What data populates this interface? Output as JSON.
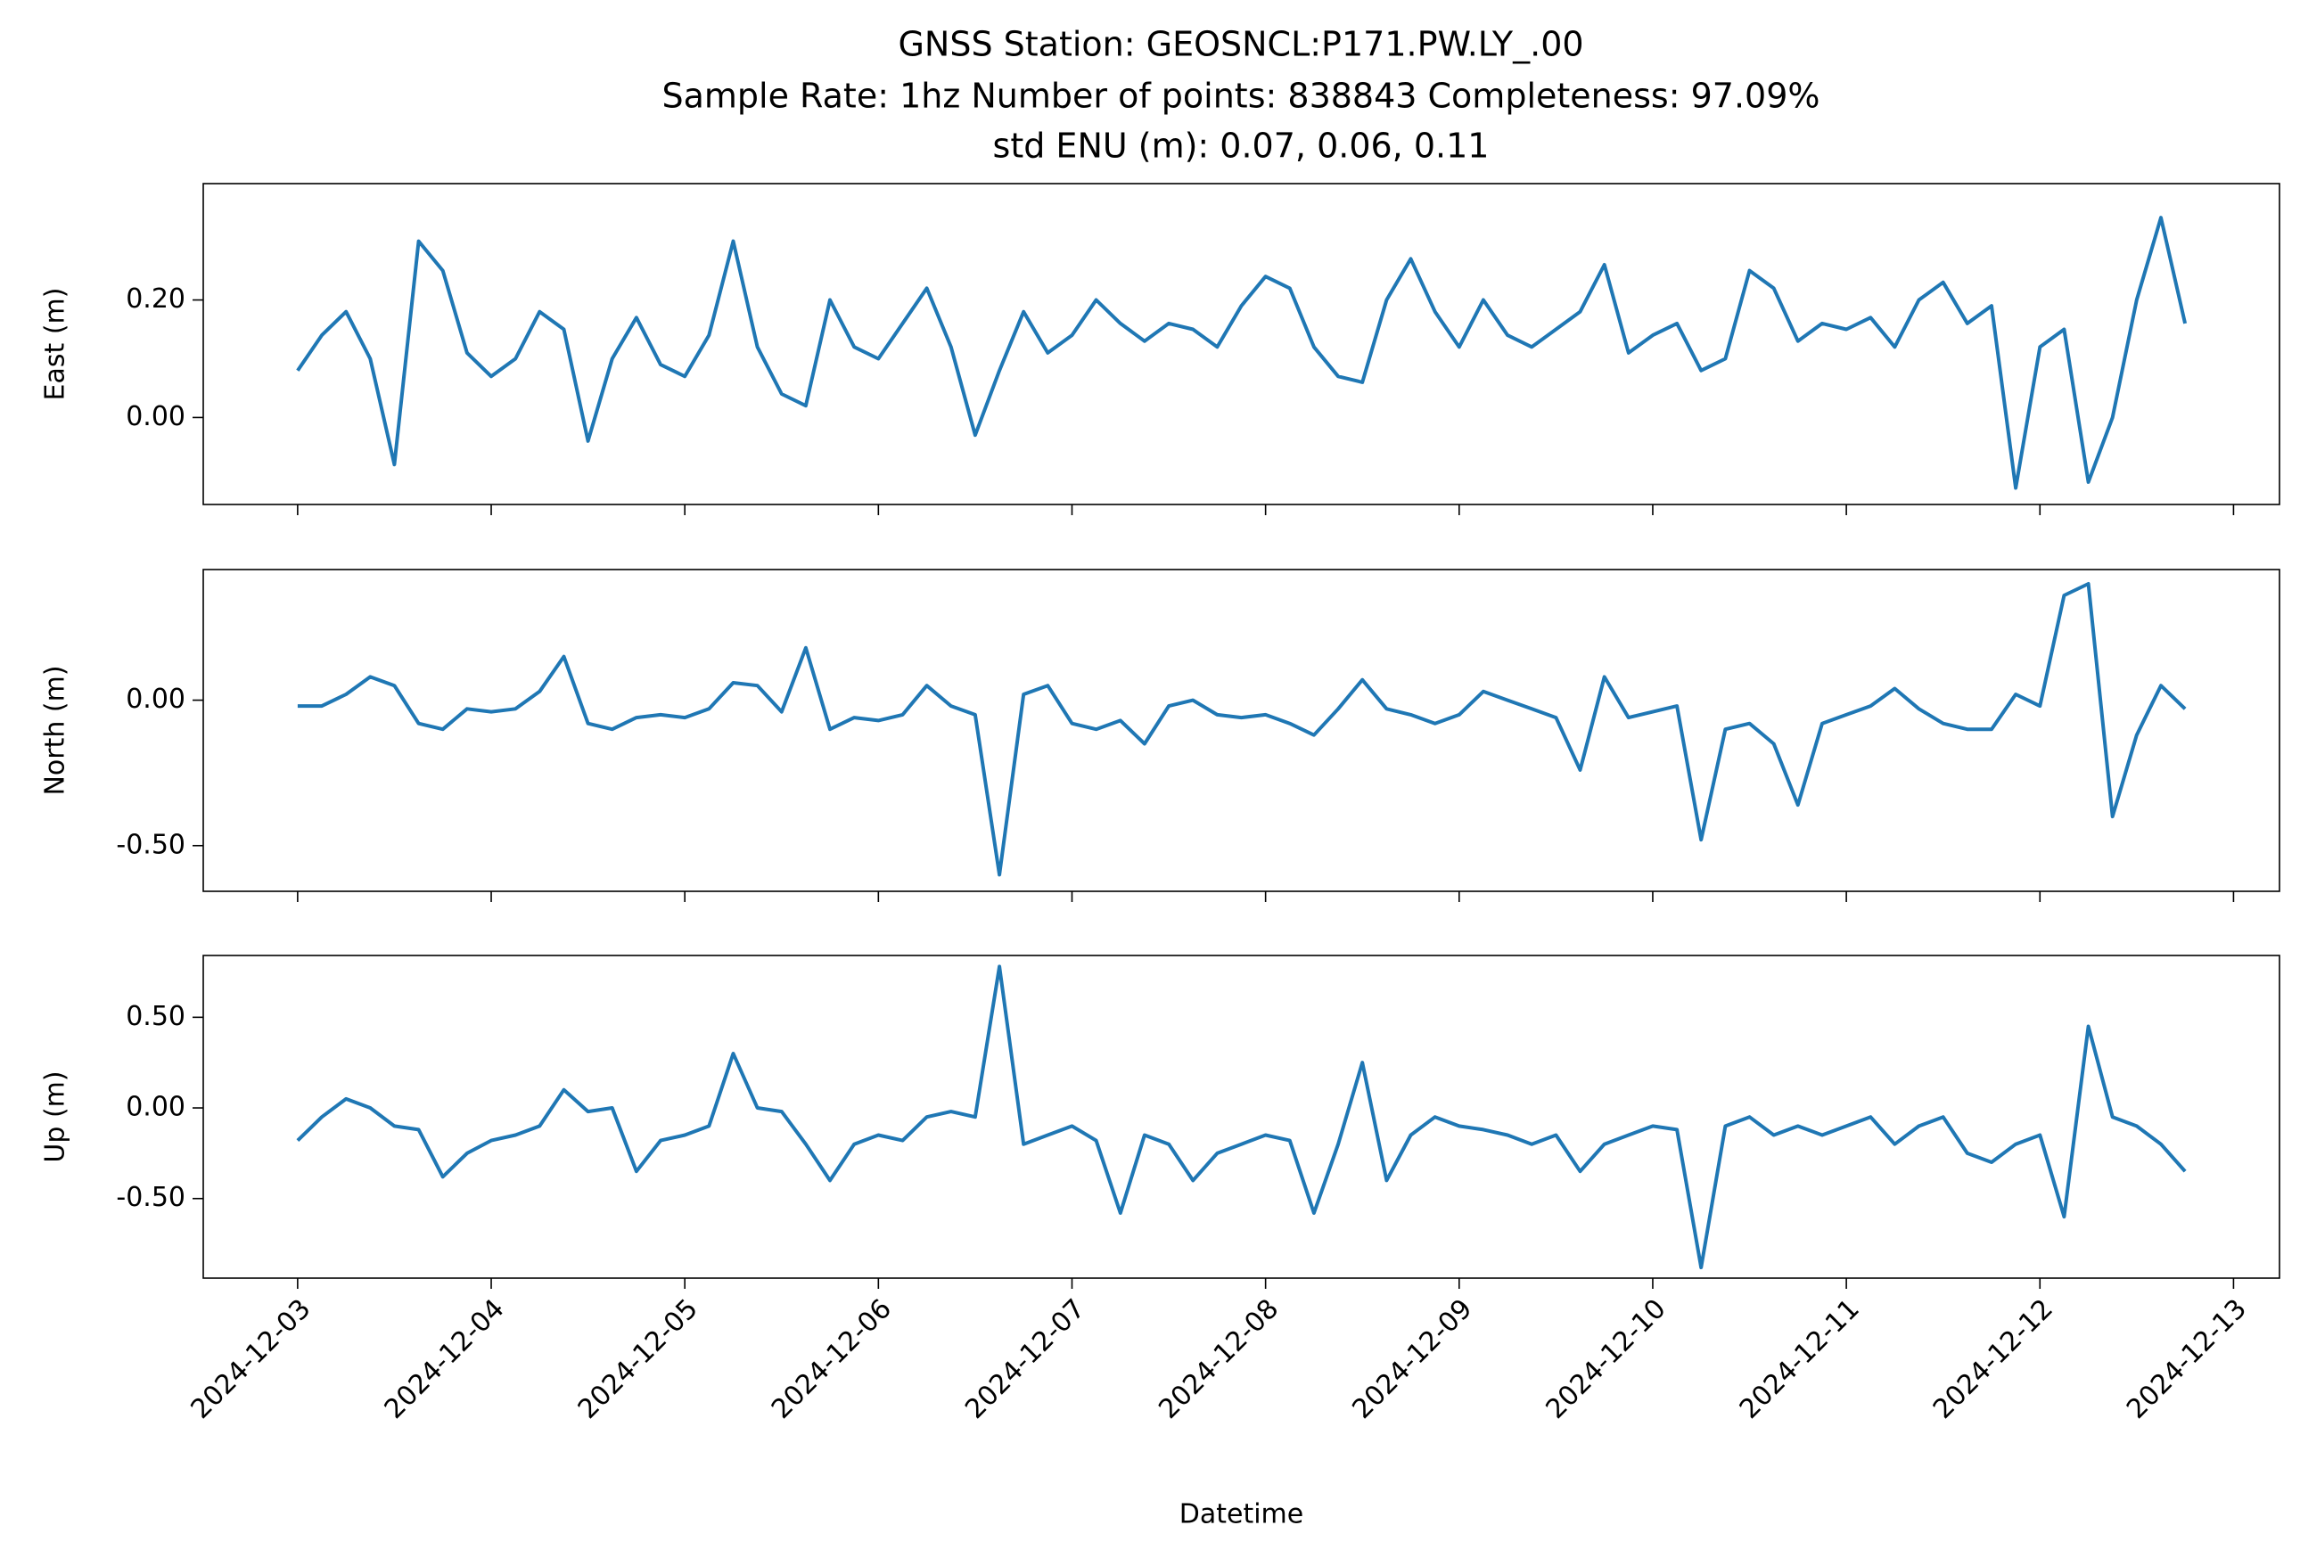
{
  "chart_data": [
    {
      "type": "line",
      "title": [
        "GNSS Station: GEOSNCL:P171.PW.LY_.00",
        "Sample Rate: 1hz   Number of points: 838843    Completeness:  97.09%",
        "std ENU (m):  0.07, 0.06, 0.11"
      ],
      "ylabel": "East (m)",
      "xlim": [
        "2024-12-02T12:18",
        "2024-12-13T05:42"
      ],
      "xticks": [
        "2024-12-03",
        "2024-12-04",
        "2024-12-05",
        "2024-12-06",
        "2024-12-07",
        "2024-12-08",
        "2024-12-09",
        "2024-12-10",
        "2024-12-11",
        "2024-12-12",
        "2024-12-13"
      ],
      "ylim": [
        -0.148,
        0.398
      ],
      "yticks": [
        {
          "value": 0,
          "label": "0.00"
        },
        {
          "value": 0.2,
          "label": "0.20"
        }
      ],
      "x": [
        "2024-12-03T00:00",
        "2024-12-03T03:00",
        "2024-12-03T06:00",
        "2024-12-03T09:00",
        "2024-12-03T12:00",
        "2024-12-03T15:00",
        "2024-12-03T18:00",
        "2024-12-03T21:00",
        "2024-12-04T00:00",
        "2024-12-04T03:00",
        "2024-12-04T06:00",
        "2024-12-04T09:00",
        "2024-12-04T12:00",
        "2024-12-04T15:00",
        "2024-12-04T18:00",
        "2024-12-04T21:00",
        "2024-12-05T00:00",
        "2024-12-05T03:00",
        "2024-12-05T06:00",
        "2024-12-05T09:00",
        "2024-12-05T12:00",
        "2024-12-05T15:00",
        "2024-12-05T18:00",
        "2024-12-05T21:00",
        "2024-12-06T00:00",
        "2024-12-06T03:00",
        "2024-12-06T06:00",
        "2024-12-06T09:00",
        "2024-12-06T12:00",
        "2024-12-06T15:00",
        "2024-12-06T18:00",
        "2024-12-06T21:00",
        "2024-12-07T00:00",
        "2024-12-07T03:00",
        "2024-12-07T06:00",
        "2024-12-07T09:00",
        "2024-12-07T12:00",
        "2024-12-07T15:00",
        "2024-12-07T18:00",
        "2024-12-07T21:00",
        "2024-12-08T00:00",
        "2024-12-08T03:00",
        "2024-12-08T06:00",
        "2024-12-08T09:00",
        "2024-12-08T12:00",
        "2024-12-08T15:00",
        "2024-12-08T18:00",
        "2024-12-08T21:00",
        "2024-12-09T00:00",
        "2024-12-09T03:00",
        "2024-12-09T06:00",
        "2024-12-09T09:00",
        "2024-12-09T12:00",
        "2024-12-09T15:00",
        "2024-12-09T18:00",
        "2024-12-09T21:00",
        "2024-12-10T00:00",
        "2024-12-10T03:00",
        "2024-12-10T06:00",
        "2024-12-10T09:00",
        "2024-12-10T12:00",
        "2024-12-10T15:00",
        "2024-12-10T18:00",
        "2024-12-10T21:00",
        "2024-12-11T00:00",
        "2024-12-11T03:00",
        "2024-12-11T06:00",
        "2024-12-11T09:00",
        "2024-12-11T12:00",
        "2024-12-11T15:00",
        "2024-12-11T18:00",
        "2024-12-11T21:00",
        "2024-12-12T00:00",
        "2024-12-12T03:00",
        "2024-12-12T06:00",
        "2024-12-12T09:00",
        "2024-12-12T12:00",
        "2024-12-12T15:00",
        "2024-12-12T18:00"
      ],
      "color": "#1f77b4",
      "values": [
        0.08,
        0.14,
        0.18,
        0.1,
        -0.08,
        0.3,
        0.25,
        0.11,
        0.07,
        0.1,
        0.18,
        0.15,
        -0.04,
        0.1,
        0.17,
        0.09,
        0.07,
        0.14,
        0.3,
        0.12,
        0.04,
        0.02,
        0.2,
        0.12,
        0.1,
        0.16,
        0.22,
        0.12,
        -0.03,
        0.08,
        0.18,
        0.11,
        0.14,
        0.2,
        0.16,
        0.13,
        0.16,
        0.15,
        0.12,
        0.19,
        0.24,
        0.22,
        0.12,
        0.07,
        0.06,
        0.2,
        0.27,
        0.18,
        0.12,
        0.2,
        0.14,
        0.12,
        0.15,
        0.18,
        0.26,
        0.11,
        0.14,
        0.16,
        0.08,
        0.1,
        0.25,
        0.22,
        0.13,
        0.16,
        0.15,
        0.17,
        0.12,
        0.2,
        0.23,
        0.16,
        0.19,
        -0.12,
        0.12,
        0.15,
        -0.11,
        0.0,
        0.2,
        0.34,
        0.16
      ]
    },
    {
      "type": "line",
      "ylabel": "North (m)",
      "xlim": [
        "2024-12-02T12:18",
        "2024-12-13T05:42"
      ],
      "xticks": [
        "2024-12-03",
        "2024-12-04",
        "2024-12-05",
        "2024-12-06",
        "2024-12-07",
        "2024-12-08",
        "2024-12-09",
        "2024-12-10",
        "2024-12-11",
        "2024-12-12",
        "2024-12-13"
      ],
      "ylim": [
        -0.657,
        0.449
      ],
      "yticks": [
        {
          "value": -0.5,
          "label": "-0.50"
        },
        {
          "value": 0,
          "label": "0.00"
        }
      ],
      "x": [
        "2024-12-03T00:00",
        "2024-12-03T03:00",
        "2024-12-03T06:00",
        "2024-12-03T09:00",
        "2024-12-03T12:00",
        "2024-12-03T15:00",
        "2024-12-03T18:00",
        "2024-12-03T21:00",
        "2024-12-04T00:00",
        "2024-12-04T03:00",
        "2024-12-04T06:00",
        "2024-12-04T09:00",
        "2024-12-04T12:00",
        "2024-12-04T15:00",
        "2024-12-04T18:00",
        "2024-12-04T21:00",
        "2024-12-05T00:00",
        "2024-12-05T03:00",
        "2024-12-05T06:00",
        "2024-12-05T09:00",
        "2024-12-05T12:00",
        "2024-12-05T15:00",
        "2024-12-05T18:00",
        "2024-12-05T21:00",
        "2024-12-06T00:00",
        "2024-12-06T03:00",
        "2024-12-06T06:00",
        "2024-12-06T09:00",
        "2024-12-06T12:00",
        "2024-12-06T15:00",
        "2024-12-06T18:00",
        "2024-12-06T21:00",
        "2024-12-07T00:00",
        "2024-12-07T03:00",
        "2024-12-07T06:00",
        "2024-12-07T09:00",
        "2024-12-07T12:00",
        "2024-12-07T15:00",
        "2024-12-07T18:00",
        "2024-12-07T21:00",
        "2024-12-08T00:00",
        "2024-12-08T03:00",
        "2024-12-08T06:00",
        "2024-12-08T09:00",
        "2024-12-08T12:00",
        "2024-12-08T15:00",
        "2024-12-08T18:00",
        "2024-12-08T21:00",
        "2024-12-09T00:00",
        "2024-12-09T03:00",
        "2024-12-09T06:00",
        "2024-12-09T09:00",
        "2024-12-09T12:00",
        "2024-12-09T15:00",
        "2024-12-09T18:00",
        "2024-12-09T21:00",
        "2024-12-10T00:00",
        "2024-12-10T03:00",
        "2024-12-10T06:00",
        "2024-12-10T09:00",
        "2024-12-10T12:00",
        "2024-12-10T15:00",
        "2024-12-10T18:00",
        "2024-12-10T21:00",
        "2024-12-11T00:00",
        "2024-12-11T03:00",
        "2024-12-11T06:00",
        "2024-12-11T09:00",
        "2024-12-11T12:00",
        "2024-12-11T15:00",
        "2024-12-11T18:00",
        "2024-12-11T21:00",
        "2024-12-12T00:00",
        "2024-12-12T03:00",
        "2024-12-12T06:00",
        "2024-12-12T09:00",
        "2024-12-12T12:00",
        "2024-12-12T15:00",
        "2024-12-12T18:00"
      ],
      "color": "#1f77b4",
      "values": [
        -0.02,
        -0.02,
        0.02,
        0.08,
        0.05,
        -0.08,
        -0.1,
        -0.03,
        -0.04,
        -0.03,
        0.03,
        0.15,
        -0.08,
        -0.1,
        -0.06,
        -0.05,
        -0.06,
        -0.03,
        0.06,
        0.05,
        -0.04,
        0.18,
        -0.1,
        -0.06,
        -0.07,
        -0.05,
        0.05,
        -0.02,
        -0.05,
        -0.6,
        0.02,
        0.05,
        -0.08,
        -0.1,
        -0.07,
        -0.15,
        -0.02,
        0.0,
        -0.05,
        -0.06,
        -0.05,
        -0.08,
        -0.12,
        -0.03,
        0.07,
        -0.03,
        -0.05,
        -0.08,
        -0.05,
        0.03,
        0.0,
        -0.03,
        -0.06,
        -0.24,
        0.08,
        -0.06,
        -0.04,
        -0.02,
        -0.48,
        -0.1,
        -0.08,
        -0.15,
        -0.36,
        -0.08,
        -0.05,
        -0.02,
        0.04,
        -0.03,
        -0.08,
        -0.1,
        -0.1,
        0.02,
        -0.02,
        0.36,
        0.4,
        -0.4,
        -0.12,
        0.05,
        -0.03
      ]
    },
    {
      "type": "line",
      "ylabel": "Up (m)",
      "xlabel": "Datetime",
      "xlim": [
        "2024-12-02T12:18",
        "2024-12-13T05:42"
      ],
      "xticks": [
        "2024-12-03",
        "2024-12-04",
        "2024-12-05",
        "2024-12-06",
        "2024-12-07",
        "2024-12-08",
        "2024-12-09",
        "2024-12-10",
        "2024-12-11",
        "2024-12-12",
        "2024-12-13"
      ],
      "ylim": [
        -0.939,
        0.841
      ],
      "yticks": [
        {
          "value": -0.5,
          "label": "-0.50"
        },
        {
          "value": 0,
          "label": "0.00"
        },
        {
          "value": 0.5,
          "label": "0.50"
        }
      ],
      "x": [
        "2024-12-03T00:00",
        "2024-12-03T03:00",
        "2024-12-03T06:00",
        "2024-12-03T09:00",
        "2024-12-03T12:00",
        "2024-12-03T15:00",
        "2024-12-03T18:00",
        "2024-12-03T21:00",
        "2024-12-04T00:00",
        "2024-12-04T03:00",
        "2024-12-04T06:00",
        "2024-12-04T09:00",
        "2024-12-04T12:00",
        "2024-12-04T15:00",
        "2024-12-04T18:00",
        "2024-12-04T21:00",
        "2024-12-05T00:00",
        "2024-12-05T03:00",
        "2024-12-05T06:00",
        "2024-12-05T09:00",
        "2024-12-05T12:00",
        "2024-12-05T15:00",
        "2024-12-05T18:00",
        "2024-12-05T21:00",
        "2024-12-06T00:00",
        "2024-12-06T03:00",
        "2024-12-06T06:00",
        "2024-12-06T09:00",
        "2024-12-06T12:00",
        "2024-12-06T15:00",
        "2024-12-06T18:00",
        "2024-12-06T21:00",
        "2024-12-07T00:00",
        "2024-12-07T03:00",
        "2024-12-07T06:00",
        "2024-12-07T09:00",
        "2024-12-07T12:00",
        "2024-12-07T15:00",
        "2024-12-07T18:00",
        "2024-12-07T21:00",
        "2024-12-08T00:00",
        "2024-12-08T03:00",
        "2024-12-08T06:00",
        "2024-12-08T09:00",
        "2024-12-08T12:00",
        "2024-12-08T15:00",
        "2024-12-08T18:00",
        "2024-12-08T21:00",
        "2024-12-09T00:00",
        "2024-12-09T03:00",
        "2024-12-09T06:00",
        "2024-12-09T09:00",
        "2024-12-09T12:00",
        "2024-12-09T15:00",
        "2024-12-09T18:00",
        "2024-12-09T21:00",
        "2024-12-10T00:00",
        "2024-12-10T03:00",
        "2024-12-10T06:00",
        "2024-12-10T09:00",
        "2024-12-10T12:00",
        "2024-12-10T15:00",
        "2024-12-10T18:00",
        "2024-12-10T21:00",
        "2024-12-11T00:00",
        "2024-12-11T03:00",
        "2024-12-11T06:00",
        "2024-12-11T09:00",
        "2024-12-11T12:00",
        "2024-12-11T15:00",
        "2024-12-11T18:00",
        "2024-12-11T21:00",
        "2024-12-12T00:00",
        "2024-12-12T03:00",
        "2024-12-12T06:00",
        "2024-12-12T09:00",
        "2024-12-12T12:00",
        "2024-12-12T15:00",
        "2024-12-12T18:00"
      ],
      "color": "#1f77b4",
      "values": [
        -0.18,
        -0.05,
        0.05,
        0.0,
        -0.1,
        -0.12,
        -0.38,
        -0.25,
        -0.18,
        -0.15,
        -0.1,
        0.1,
        -0.02,
        0.0,
        -0.35,
        -0.18,
        -0.15,
        -0.1,
        0.3,
        0.0,
        -0.02,
        -0.2,
        -0.4,
        -0.2,
        -0.15,
        -0.18,
        -0.05,
        -0.02,
        -0.05,
        0.78,
        -0.2,
        -0.15,
        -0.1,
        -0.18,
        -0.58,
        -0.15,
        -0.2,
        -0.4,
        -0.25,
        -0.2,
        -0.15,
        -0.18,
        -0.58,
        -0.2,
        0.25,
        -0.4,
        -0.15,
        -0.05,
        -0.1,
        -0.12,
        -0.15,
        -0.2,
        -0.15,
        -0.35,
        -0.2,
        -0.15,
        -0.1,
        -0.12,
        -0.88,
        -0.1,
        -0.05,
        -0.15,
        -0.1,
        -0.15,
        -0.1,
        -0.05,
        -0.2,
        -0.1,
        -0.05,
        -0.25,
        -0.3,
        -0.2,
        -0.15,
        -0.6,
        0.45,
        -0.05,
        -0.1,
        -0.2,
        -0.35
      ]
    }
  ]
}
